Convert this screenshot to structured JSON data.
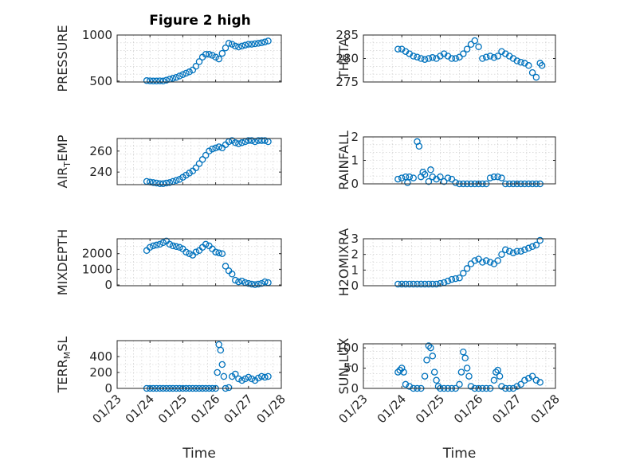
{
  "figure_title": "Figure 2 high",
  "colors": {
    "marker": "#0072BD",
    "axis": "#262626",
    "grid": "#c8c8c8"
  },
  "chart_data": [
    {
      "type": "scatter",
      "ylabel": "PRESSURE",
      "ylim": [
        490,
        1000
      ],
      "yticks": [
        500,
        1000
      ],
      "yticklabels": [
        "500",
        "1000"
      ],
      "xlim": [
        0,
        5
      ],
      "grid": true,
      "show_xticklabels": false,
      "x": [
        0.9,
        1.0,
        1.1,
        1.2,
        1.3,
        1.4,
        1.5,
        1.6,
        1.7,
        1.8,
        1.9,
        2.0,
        2.1,
        2.2,
        2.3,
        2.4,
        2.5,
        2.6,
        2.7,
        2.8,
        2.9,
        3.0,
        3.1,
        3.2,
        3.3,
        3.4,
        3.5,
        3.6,
        3.7,
        3.8,
        3.9,
        4.0,
        4.1,
        4.2,
        4.3,
        4.4,
        4.5,
        4.6
      ],
      "y": [
        505,
        502,
        500,
        500,
        502,
        500,
        510,
        520,
        530,
        540,
        555,
        570,
        585,
        600,
        620,
        660,
        710,
        760,
        790,
        790,
        780,
        760,
        740,
        800,
        860,
        910,
        900,
        880,
        870,
        880,
        890,
        900,
        900,
        905,
        910,
        915,
        925,
        935
      ]
    },
    {
      "type": "scatter",
      "ylabel": "THETA",
      "ylim": [
        275,
        285
      ],
      "yticks": [
        275,
        280,
        285
      ],
      "yticklabels": [
        "275",
        "280",
        "285"
      ],
      "xlim": [
        0,
        5
      ],
      "grid": true,
      "show_xticklabels": false,
      "x": [
        0.9,
        1.0,
        1.1,
        1.2,
        1.3,
        1.4,
        1.5,
        1.6,
        1.7,
        1.8,
        1.9,
        2.0,
        2.1,
        2.2,
        2.3,
        2.4,
        2.5,
        2.6,
        2.7,
        2.8,
        2.9,
        3.0,
        3.1,
        3.2,
        3.3,
        3.4,
        3.5,
        3.6,
        3.7,
        3.8,
        3.9,
        4.0,
        4.1,
        4.2,
        4.3,
        4.4,
        4.5,
        4.6,
        4.65
      ],
      "y": [
        282,
        282,
        281.5,
        281,
        280.5,
        280.3,
        280,
        279.8,
        280,
        280.2,
        280,
        280.5,
        281,
        280.5,
        280,
        280,
        280.3,
        281,
        282,
        283,
        283.8,
        282.5,
        280,
        280.3,
        280.5,
        280.2,
        280.5,
        281.5,
        281,
        280.5,
        280,
        279.5,
        279.2,
        279,
        278.5,
        277,
        276,
        279,
        278.5
      ]
    },
    {
      "type": "scatter",
      "ylabel": "AIR_TEMP",
      "ylim": [
        228,
        272
      ],
      "yticks": [
        240,
        260
      ],
      "yticklabels": [
        "240",
        "260"
      ],
      "xlim": [
        0,
        5
      ],
      "grid": true,
      "show_xticklabels": false,
      "x": [
        0.9,
        1.0,
        1.1,
        1.2,
        1.3,
        1.4,
        1.5,
        1.6,
        1.7,
        1.8,
        1.9,
        2.0,
        2.1,
        2.2,
        2.3,
        2.4,
        2.5,
        2.6,
        2.7,
        2.8,
        2.9,
        3.0,
        3.1,
        3.2,
        3.3,
        3.4,
        3.5,
        3.6,
        3.7,
        3.8,
        3.9,
        4.0,
        4.1,
        4.2,
        4.3,
        4.4,
        4.5,
        4.6
      ],
      "y": [
        231,
        230.5,
        230,
        229.5,
        229,
        229,
        229.5,
        230,
        231,
        232,
        233,
        235,
        237,
        239,
        241,
        244,
        248,
        252,
        256,
        260,
        262,
        263,
        264,
        263,
        266,
        269,
        270,
        268,
        267,
        268,
        269,
        270,
        270,
        269,
        270,
        270,
        270,
        269
      ]
    },
    {
      "type": "scatter",
      "ylabel": "RAINFALL",
      "ylim": [
        0,
        2
      ],
      "yticks": [
        0,
        1,
        2
      ],
      "yticklabels": [
        "0",
        "1",
        "2"
      ],
      "xlim": [
        0,
        5
      ],
      "grid": true,
      "show_xticklabels": false,
      "x": [
        0.9,
        1.0,
        1.1,
        1.15,
        1.2,
        1.3,
        1.4,
        1.45,
        1.5,
        1.55,
        1.6,
        1.7,
        1.75,
        1.8,
        1.9,
        2.0,
        2.1,
        2.2,
        2.3,
        2.4,
        2.5,
        2.6,
        2.7,
        2.8,
        2.9,
        3.0,
        3.1,
        3.2,
        3.3,
        3.4,
        3.5,
        3.6,
        3.7,
        3.8,
        3.9,
        4.0,
        4.1,
        4.2,
        4.3,
        4.4,
        4.5,
        4.6
      ],
      "y": [
        0.2,
        0.25,
        0.3,
        0.05,
        0.3,
        0.25,
        1.8,
        1.6,
        0.3,
        0.5,
        0.4,
        0.1,
        0.6,
        0.3,
        0.2,
        0.3,
        0.1,
        0.25,
        0.2,
        0.05,
        0.0,
        0.0,
        0.0,
        0.0,
        0.0,
        0.0,
        0.0,
        0.0,
        0.25,
        0.3,
        0.3,
        0.25,
        0.0,
        0.0,
        0.0,
        0.0,
        0.0,
        0.0,
        0.0,
        0.0,
        0.0,
        0.0
      ]
    },
    {
      "type": "scatter",
      "ylabel": "MIXDEPTH",
      "ylim": [
        -50,
        2950
      ],
      "yticks": [
        0,
        1000,
        2000
      ],
      "yticklabels": [
        "0",
        "1000",
        "2000"
      ],
      "xlim": [
        0,
        5
      ],
      "grid": true,
      "show_xticklabels": false,
      "x": [
        0.9,
        1.0,
        1.1,
        1.2,
        1.3,
        1.4,
        1.5,
        1.6,
        1.7,
        1.8,
        1.9,
        2.0,
        2.1,
        2.2,
        2.3,
        2.4,
        2.5,
        2.6,
        2.7,
        2.8,
        2.9,
        3.0,
        3.1,
        3.2,
        3.3,
        3.4,
        3.5,
        3.6,
        3.7,
        3.8,
        3.9,
        4.0,
        4.1,
        4.2,
        4.3,
        4.4,
        4.5,
        4.6
      ],
      "y": [
        2200,
        2400,
        2500,
        2550,
        2600,
        2700,
        2800,
        2600,
        2500,
        2450,
        2400,
        2300,
        2100,
        2000,
        1900,
        2100,
        2200,
        2400,
        2600,
        2500,
        2300,
        2100,
        2050,
        2000,
        1200,
        900,
        700,
        300,
        200,
        250,
        150,
        100,
        50,
        20,
        50,
        100,
        200,
        150
      ]
    },
    {
      "type": "scatter",
      "ylabel": "H2OMIXRA",
      "ylim": [
        0,
        3
      ],
      "yticks": [
        0,
        1,
        2,
        3
      ],
      "yticklabels": [
        "0",
        "1",
        "2",
        "3"
      ],
      "xlim": [
        0,
        5
      ],
      "grid": true,
      "show_xticklabels": false,
      "x": [
        0.9,
        1.0,
        1.1,
        1.2,
        1.3,
        1.4,
        1.5,
        1.6,
        1.7,
        1.8,
        1.9,
        2.0,
        2.1,
        2.2,
        2.3,
        2.4,
        2.5,
        2.6,
        2.7,
        2.8,
        2.9,
        3.0,
        3.1,
        3.2,
        3.3,
        3.4,
        3.5,
        3.6,
        3.7,
        3.8,
        3.9,
        4.0,
        4.1,
        4.2,
        4.3,
        4.4,
        4.5,
        4.6
      ],
      "y": [
        0.1,
        0.1,
        0.1,
        0.1,
        0.1,
        0.1,
        0.1,
        0.1,
        0.1,
        0.1,
        0.1,
        0.15,
        0.2,
        0.3,
        0.4,
        0.45,
        0.5,
        0.8,
        1.1,
        1.4,
        1.6,
        1.7,
        1.5,
        1.6,
        1.5,
        1.4,
        1.6,
        2.0,
        2.3,
        2.2,
        2.1,
        2.2,
        2.2,
        2.3,
        2.4,
        2.5,
        2.6,
        2.9
      ]
    },
    {
      "type": "scatter",
      "ylabel": "TERR_MSL",
      "ylim": [
        0,
        600
      ],
      "yticks": [
        0,
        200,
        400
      ],
      "yticklabels": [
        "0",
        "200",
        "400"
      ],
      "xlim": [
        0,
        5
      ],
      "grid": true,
      "show_xticklabels": true,
      "xticks": [
        0,
        1,
        2,
        3,
        4,
        5
      ],
      "xticklabels": [
        "01/23",
        "01/24",
        "01/25",
        "01/26",
        "01/27",
        "01/28"
      ],
      "xlabel": "Time",
      "x": [
        0.9,
        1.0,
        1.1,
        1.2,
        1.3,
        1.4,
        1.5,
        1.6,
        1.7,
        1.8,
        1.9,
        2.0,
        2.1,
        2.2,
        2.3,
        2.4,
        2.5,
        2.6,
        2.7,
        2.8,
        2.9,
        3.0,
        3.05,
        3.1,
        3.15,
        3.2,
        3.25,
        3.3,
        3.4,
        3.5,
        3.6,
        3.7,
        3.8,
        3.9,
        4.0,
        4.1,
        4.2,
        4.3,
        4.4,
        4.5,
        4.6
      ],
      "y": [
        0,
        0,
        0,
        0,
        0,
        0,
        0,
        0,
        0,
        0,
        0,
        0,
        0,
        0,
        0,
        0,
        0,
        0,
        0,
        0,
        0,
        0,
        200,
        550,
        480,
        300,
        150,
        0,
        10,
        150,
        180,
        120,
        100,
        120,
        140,
        120,
        100,
        130,
        150,
        140,
        150
      ]
    },
    {
      "type": "scatter",
      "ylabel": "SUN_FLUX",
      "ylim": [
        0,
        110
      ],
      "yticks": [
        0,
        50,
        100
      ],
      "yticklabels": [
        "0",
        "50",
        "100"
      ],
      "xlim": [
        0,
        5
      ],
      "grid": true,
      "show_xticklabels": true,
      "xticks": [
        0,
        1,
        2,
        3,
        4,
        5
      ],
      "xticklabels": [
        "01/23",
        "01/24",
        "01/25",
        "01/26",
        "01/27",
        "01/28"
      ],
      "xlabel": "Time",
      "x": [
        0.9,
        0.95,
        1.0,
        1.05,
        1.1,
        1.2,
        1.3,
        1.4,
        1.5,
        1.6,
        1.65,
        1.7,
        1.75,
        1.8,
        1.85,
        1.9,
        1.95,
        2.0,
        2.1,
        2.2,
        2.3,
        2.4,
        2.5,
        2.55,
        2.6,
        2.65,
        2.7,
        2.75,
        2.8,
        2.9,
        3.0,
        3.1,
        3.2,
        3.3,
        3.4,
        3.45,
        3.5,
        3.55,
        3.6,
        3.7,
        3.8,
        3.9,
        4.0,
        4.1,
        4.2,
        4.3,
        4.4,
        4.5,
        4.6
      ],
      "y": [
        40,
        45,
        50,
        40,
        10,
        5,
        0,
        0,
        0,
        30,
        70,
        105,
        100,
        80,
        40,
        20,
        5,
        0,
        0,
        0,
        0,
        0,
        10,
        40,
        90,
        75,
        50,
        30,
        5,
        0,
        0,
        0,
        0,
        0,
        20,
        40,
        45,
        30,
        5,
        0,
        0,
        0,
        5,
        10,
        20,
        25,
        30,
        20,
        15
      ]
    }
  ]
}
